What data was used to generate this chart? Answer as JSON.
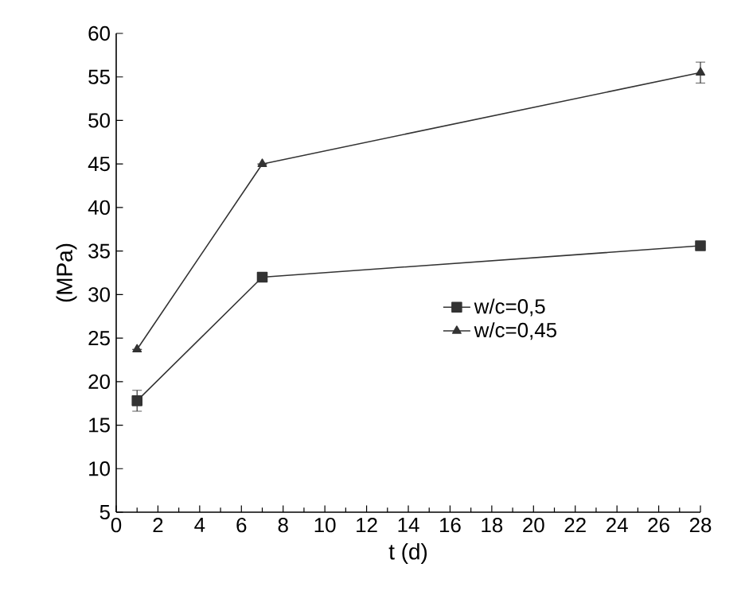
{
  "chart_data": {
    "type": "line",
    "xlabel": "t (d)",
    "ylabel": "(MPa)",
    "xlim": [
      0,
      28
    ],
    "ylim": [
      5,
      60
    ],
    "xticks": [
      0,
      2,
      4,
      6,
      8,
      10,
      12,
      14,
      16,
      18,
      20,
      22,
      24,
      26,
      28
    ],
    "yticks": [
      5,
      10,
      15,
      20,
      25,
      30,
      35,
      40,
      45,
      50,
      55,
      60
    ],
    "x": [
      1,
      7,
      28
    ],
    "series": [
      {
        "name": "w/c=0,5",
        "color": "#333333",
        "values": [
          17.8,
          32,
          35.6
        ],
        "errors": [
          1.2,
          null,
          null
        ],
        "marker": "square"
      },
      {
        "name": "w/c=0,45",
        "color": "#333333",
        "values": [
          23.7,
          45,
          55.5
        ],
        "errors": [
          null,
          null,
          1.2
        ],
        "marker": "triangle"
      }
    ],
    "legend": "right",
    "grid": false,
    "line_style": "solid"
  }
}
